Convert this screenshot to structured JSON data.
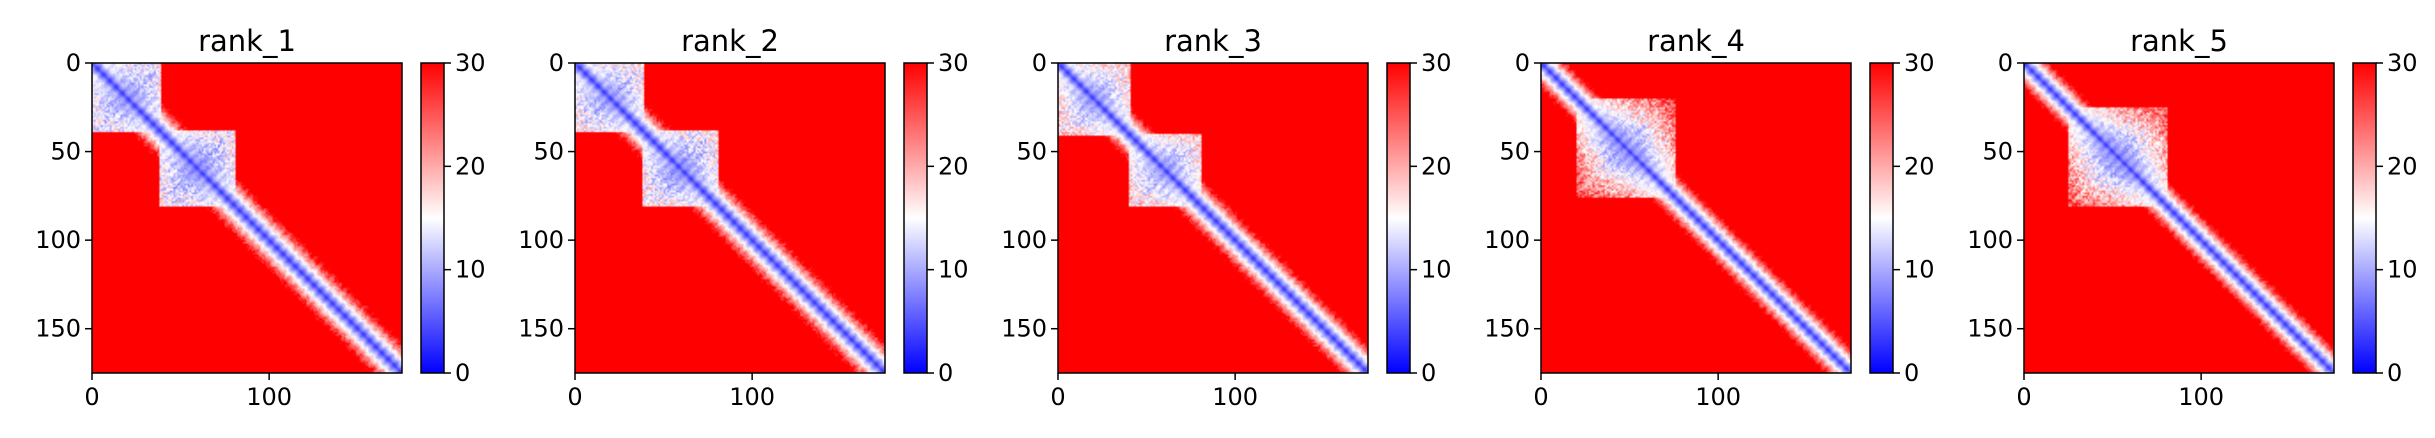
{
  "chart_data": [
    {
      "type": "heatmap",
      "title": "rank_1",
      "x_ticks": [
        "0",
        "100"
      ],
      "y_ticks": [
        "0",
        "50",
        "100",
        "150"
      ],
      "x_range": [
        0,
        175
      ],
      "y_range": [
        0,
        175
      ],
      "colorbar": {
        "ticks": [
          "0",
          "10",
          "20",
          "30"
        ],
        "range": [
          0,
          30
        ],
        "colors": [
          "#0000ff",
          "#ffffff",
          "#ff0000"
        ]
      },
      "pattern": {
        "domains": [
          [
            0,
            38
          ],
          [
            38,
            80
          ]
        ],
        "diag_width": 3.0,
        "domain_strength": 0.9
      }
    },
    {
      "type": "heatmap",
      "title": "rank_2",
      "x_ticks": [
        "0",
        "100"
      ],
      "y_ticks": [
        "0",
        "50",
        "100",
        "150"
      ],
      "x_range": [
        0,
        175
      ],
      "y_range": [
        0,
        175
      ],
      "colorbar": {
        "ticks": [
          "0",
          "10",
          "20",
          "30"
        ],
        "range": [
          0,
          30
        ],
        "colors": [
          "#0000ff",
          "#ffffff",
          "#ff0000"
        ]
      },
      "pattern": {
        "domains": [
          [
            0,
            38
          ],
          [
            38,
            80
          ]
        ],
        "diag_width": 3.0,
        "domain_strength": 0.85
      }
    },
    {
      "type": "heatmap",
      "title": "rank_3",
      "x_ticks": [
        "0",
        "100"
      ],
      "y_ticks": [
        "0",
        "50",
        "100",
        "150"
      ],
      "x_range": [
        0,
        175
      ],
      "y_range": [
        0,
        175
      ],
      "colorbar": {
        "ticks": [
          "0",
          "10",
          "20",
          "30"
        ],
        "range": [
          0,
          30
        ],
        "colors": [
          "#0000ff",
          "#ffffff",
          "#ff0000"
        ]
      },
      "pattern": {
        "domains": [
          [
            0,
            40
          ],
          [
            40,
            80
          ]
        ],
        "diag_width": 2.8,
        "domain_strength": 0.7
      }
    },
    {
      "type": "heatmap",
      "title": "rank_4",
      "x_ticks": [
        "0",
        "100"
      ],
      "y_ticks": [
        "0",
        "50",
        "100",
        "150"
      ],
      "x_range": [
        0,
        175
      ],
      "y_range": [
        0,
        175
      ],
      "colorbar": {
        "ticks": [
          "0",
          "10",
          "20",
          "30"
        ],
        "range": [
          0,
          30
        ],
        "colors": [
          "#0000ff",
          "#ffffff",
          "#ff0000"
        ]
      },
      "pattern": {
        "domains": [
          [
            20,
            75
          ]
        ],
        "diag_width": 2.6,
        "domain_strength": 0.35
      }
    },
    {
      "type": "heatmap",
      "title": "rank_5",
      "x_ticks": [
        "0",
        "100"
      ],
      "y_ticks": [
        "0",
        "50",
        "100",
        "150"
      ],
      "x_range": [
        0,
        175
      ],
      "y_range": [
        0,
        175
      ],
      "colorbar": {
        "ticks": [
          "0",
          "10",
          "20",
          "30"
        ],
        "range": [
          0,
          30
        ],
        "colors": [
          "#0000ff",
          "#ffffff",
          "#ff0000"
        ]
      },
      "pattern": {
        "domains": [
          [
            25,
            80
          ]
        ],
        "diag_width": 2.6,
        "domain_strength": 0.4
      }
    }
  ]
}
